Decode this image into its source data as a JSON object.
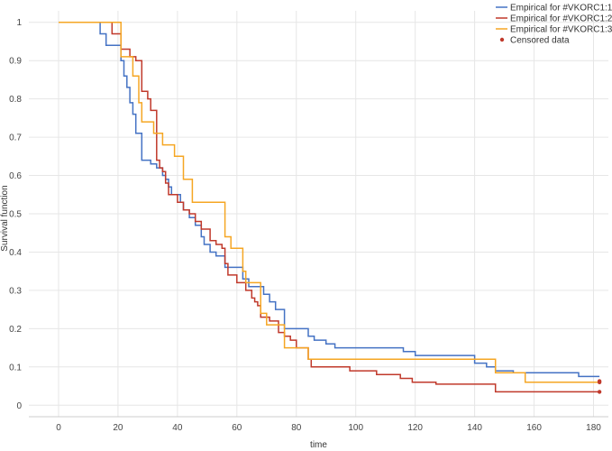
{
  "chart_data": {
    "type": "line",
    "step": true,
    "xlabel": "time",
    "ylabel": "Survival function",
    "xlim": [
      -10,
      185
    ],
    "ylim": [
      -0.03,
      1.03
    ],
    "xticks": [
      0,
      20,
      40,
      60,
      80,
      100,
      120,
      140,
      160,
      180
    ],
    "yticks": [
      0,
      0.1,
      0.2,
      0.3,
      0.4,
      0.5,
      0.6,
      0.7,
      0.8,
      0.9,
      1
    ],
    "grid": true,
    "legend_position": "top-right",
    "series": [
      {
        "name": "Empirical for #VKORC1:1",
        "color": "#4472c4",
        "points": [
          [
            0,
            1
          ],
          [
            14,
            1
          ],
          [
            14,
            0.97
          ],
          [
            16,
            0.97
          ],
          [
            16,
            0.94
          ],
          [
            21,
            0.94
          ],
          [
            21,
            0.9
          ],
          [
            22,
            0.9
          ],
          [
            22,
            0.86
          ],
          [
            23,
            0.86
          ],
          [
            23,
            0.83
          ],
          [
            24,
            0.83
          ],
          [
            24,
            0.79
          ],
          [
            25,
            0.79
          ],
          [
            25,
            0.76
          ],
          [
            26,
            0.76
          ],
          [
            26,
            0.71
          ],
          [
            28,
            0.71
          ],
          [
            28,
            0.64
          ],
          [
            31,
            0.64
          ],
          [
            31,
            0.63
          ],
          [
            33,
            0.63
          ],
          [
            33,
            0.62
          ],
          [
            35,
            0.62
          ],
          [
            35,
            0.6
          ],
          [
            36,
            0.6
          ],
          [
            36,
            0.59
          ],
          [
            37,
            0.59
          ],
          [
            37,
            0.57
          ],
          [
            38,
            0.57
          ],
          [
            38,
            0.55
          ],
          [
            41,
            0.55
          ],
          [
            41,
            0.53
          ],
          [
            42,
            0.53
          ],
          [
            42,
            0.51
          ],
          [
            44,
            0.51
          ],
          [
            44,
            0.49
          ],
          [
            46,
            0.49
          ],
          [
            46,
            0.47
          ],
          [
            48,
            0.47
          ],
          [
            48,
            0.44
          ],
          [
            49,
            0.44
          ],
          [
            49,
            0.42
          ],
          [
            51,
            0.42
          ],
          [
            51,
            0.4
          ],
          [
            53,
            0.4
          ],
          [
            53,
            0.39
          ],
          [
            56,
            0.39
          ],
          [
            56,
            0.36
          ],
          [
            62,
            0.36
          ],
          [
            62,
            0.33
          ],
          [
            64,
            0.33
          ],
          [
            64,
            0.31
          ],
          [
            69,
            0.31
          ],
          [
            69,
            0.29
          ],
          [
            71,
            0.29
          ],
          [
            71,
            0.27
          ],
          [
            73,
            0.27
          ],
          [
            73,
            0.25
          ],
          [
            76,
            0.25
          ],
          [
            76,
            0.2
          ],
          [
            84,
            0.2
          ],
          [
            84,
            0.18
          ],
          [
            86,
            0.18
          ],
          [
            86,
            0.17
          ],
          [
            90,
            0.17
          ],
          [
            90,
            0.16
          ],
          [
            93,
            0.16
          ],
          [
            93,
            0.15
          ],
          [
            116,
            0.15
          ],
          [
            116,
            0.14
          ],
          [
            120,
            0.14
          ],
          [
            120,
            0.13
          ],
          [
            140,
            0.13
          ],
          [
            140,
            0.11
          ],
          [
            144,
            0.11
          ],
          [
            144,
            0.1
          ],
          [
            147,
            0.1
          ],
          [
            147,
            0.09
          ],
          [
            153,
            0.09
          ],
          [
            153,
            0.085
          ],
          [
            175,
            0.085
          ],
          [
            175,
            0.075
          ],
          [
            182,
            0.075
          ]
        ],
        "censored": [
          [
            182,
            0.063
          ]
        ]
      },
      {
        "name": "Empirical for #VKORC1:2",
        "color": "#c0392b",
        "points": [
          [
            0,
            1
          ],
          [
            18,
            1
          ],
          [
            18,
            0.97
          ],
          [
            21,
            0.97
          ],
          [
            21,
            0.93
          ],
          [
            24,
            0.93
          ],
          [
            24,
            0.91
          ],
          [
            26,
            0.91
          ],
          [
            26,
            0.9
          ],
          [
            28,
            0.9
          ],
          [
            28,
            0.82
          ],
          [
            30,
            0.82
          ],
          [
            30,
            0.8
          ],
          [
            31,
            0.8
          ],
          [
            31,
            0.77
          ],
          [
            33,
            0.77
          ],
          [
            33,
            0.64
          ],
          [
            34,
            0.64
          ],
          [
            34,
            0.62
          ],
          [
            35,
            0.62
          ],
          [
            35,
            0.61
          ],
          [
            36,
            0.61
          ],
          [
            36,
            0.58
          ],
          [
            37,
            0.58
          ],
          [
            37,
            0.55
          ],
          [
            40,
            0.55
          ],
          [
            40,
            0.53
          ],
          [
            42,
            0.53
          ],
          [
            42,
            0.51
          ],
          [
            44,
            0.51
          ],
          [
            44,
            0.5
          ],
          [
            46,
            0.5
          ],
          [
            46,
            0.48
          ],
          [
            48,
            0.48
          ],
          [
            48,
            0.46
          ],
          [
            51,
            0.46
          ],
          [
            51,
            0.43
          ],
          [
            53,
            0.43
          ],
          [
            53,
            0.42
          ],
          [
            55,
            0.42
          ],
          [
            55,
            0.41
          ],
          [
            56,
            0.41
          ],
          [
            56,
            0.37
          ],
          [
            57,
            0.37
          ],
          [
            57,
            0.34
          ],
          [
            60,
            0.34
          ],
          [
            60,
            0.32
          ],
          [
            63,
            0.32
          ],
          [
            63,
            0.3
          ],
          [
            65,
            0.3
          ],
          [
            65,
            0.28
          ],
          [
            66,
            0.28
          ],
          [
            66,
            0.27
          ],
          [
            67,
            0.27
          ],
          [
            67,
            0.26
          ],
          [
            68,
            0.26
          ],
          [
            68,
            0.23
          ],
          [
            71,
            0.23
          ],
          [
            71,
            0.22
          ],
          [
            74,
            0.22
          ],
          [
            74,
            0.19
          ],
          [
            76,
            0.19
          ],
          [
            76,
            0.18
          ],
          [
            78,
            0.18
          ],
          [
            78,
            0.17
          ],
          [
            80,
            0.17
          ],
          [
            80,
            0.15
          ],
          [
            84,
            0.15
          ],
          [
            84,
            0.12
          ],
          [
            85,
            0.12
          ],
          [
            85,
            0.1
          ],
          [
            98,
            0.1
          ],
          [
            98,
            0.09
          ],
          [
            107,
            0.09
          ],
          [
            107,
            0.08
          ],
          [
            115,
            0.08
          ],
          [
            115,
            0.07
          ],
          [
            119,
            0.07
          ],
          [
            119,
            0.06
          ],
          [
            127,
            0.06
          ],
          [
            127,
            0.055
          ],
          [
            147,
            0.055
          ],
          [
            147,
            0.035
          ],
          [
            182,
            0.035
          ]
        ],
        "censored": [
          [
            182,
            0.035
          ],
          [
            182,
            0.06
          ]
        ]
      },
      {
        "name": "Empirical for #VKORC1:3",
        "color": "#f5a623",
        "points": [
          [
            0,
            1
          ],
          [
            21,
            1
          ],
          [
            21,
            0.91
          ],
          [
            25,
            0.91
          ],
          [
            25,
            0.86
          ],
          [
            27,
            0.86
          ],
          [
            27,
            0.79
          ],
          [
            28,
            0.79
          ],
          [
            28,
            0.74
          ],
          [
            32,
            0.74
          ],
          [
            32,
            0.71
          ],
          [
            35,
            0.71
          ],
          [
            35,
            0.68
          ],
          [
            39,
            0.68
          ],
          [
            39,
            0.65
          ],
          [
            42,
            0.65
          ],
          [
            42,
            0.59
          ],
          [
            45,
            0.59
          ],
          [
            45,
            0.53
          ],
          [
            56,
            0.53
          ],
          [
            56,
            0.44
          ],
          [
            58,
            0.44
          ],
          [
            58,
            0.41
          ],
          [
            62,
            0.41
          ],
          [
            62,
            0.35
          ],
          [
            63,
            0.35
          ],
          [
            63,
            0.32
          ],
          [
            68,
            0.32
          ],
          [
            68,
            0.24
          ],
          [
            70,
            0.24
          ],
          [
            70,
            0.21
          ],
          [
            76,
            0.21
          ],
          [
            76,
            0.15
          ],
          [
            84,
            0.15
          ],
          [
            84,
            0.12
          ],
          [
            147,
            0.12
          ],
          [
            147,
            0.085
          ],
          [
            157,
            0.085
          ],
          [
            157,
            0.06
          ],
          [
            182,
            0.06
          ]
        ],
        "censored": []
      }
    ],
    "censored_label": "Censored data",
    "censored_color": "#c0392b"
  }
}
